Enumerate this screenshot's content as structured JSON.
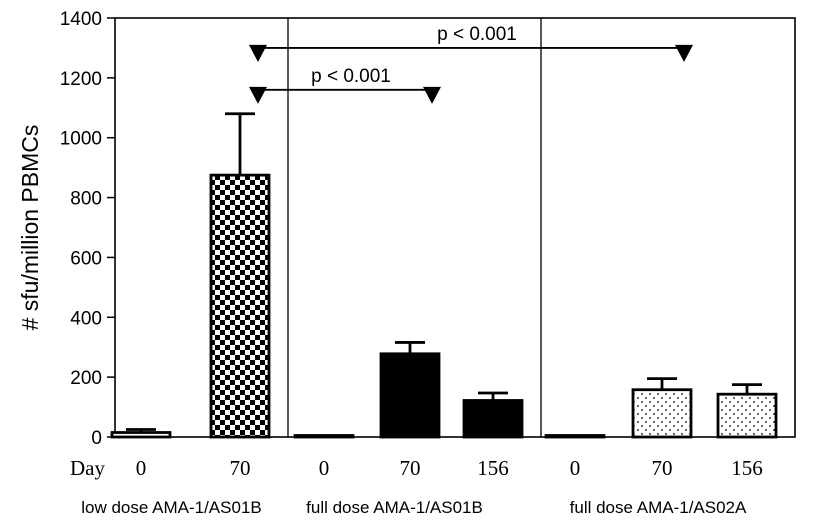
{
  "chart_data": {
    "type": "bar",
    "ylabel": "# sfu/million PBMCs",
    "ylim": [
      0,
      1400
    ],
    "yticks": [
      0,
      200,
      400,
      600,
      800,
      1000,
      1200,
      1400
    ],
    "x_prefix": "Day",
    "groups": [
      {
        "label": "low  dose AMA-1/AS01B",
        "bars": [
          {
            "category": "0",
            "value": 15,
            "error": 10,
            "pattern": "open"
          },
          {
            "category": "70",
            "value": 875,
            "error": 205,
            "pattern": "checker"
          }
        ]
      },
      {
        "label": "full dose AMA-1/AS01B",
        "bars": [
          {
            "category": "0",
            "value": 2,
            "error": 0,
            "pattern": "solid"
          },
          {
            "category": "70",
            "value": 278,
            "error": 38,
            "pattern": "solid"
          },
          {
            "category": "156",
            "value": 122,
            "error": 25,
            "pattern": "solid"
          }
        ]
      },
      {
        "label": "full dose AMA-1/AS02A",
        "bars": [
          {
            "category": "0",
            "value": 2,
            "error": 0,
            "pattern": "open"
          },
          {
            "category": "70",
            "value": 158,
            "error": 37,
            "pattern": "dots"
          },
          {
            "category": "156",
            "value": 143,
            "error": 32,
            "pattern": "dots"
          }
        ]
      }
    ],
    "annotations": [
      {
        "text": "p < 0.001",
        "from": {
          "group": 0,
          "bar": 1
        },
        "to": {
          "group": 1,
          "bar": 1
        },
        "y": 1140
      },
      {
        "text": "p < 0.001",
        "from": {
          "group": 0,
          "bar": 1
        },
        "to": {
          "group": 2,
          "bar": 1
        },
        "y": 1280
      }
    ]
  }
}
